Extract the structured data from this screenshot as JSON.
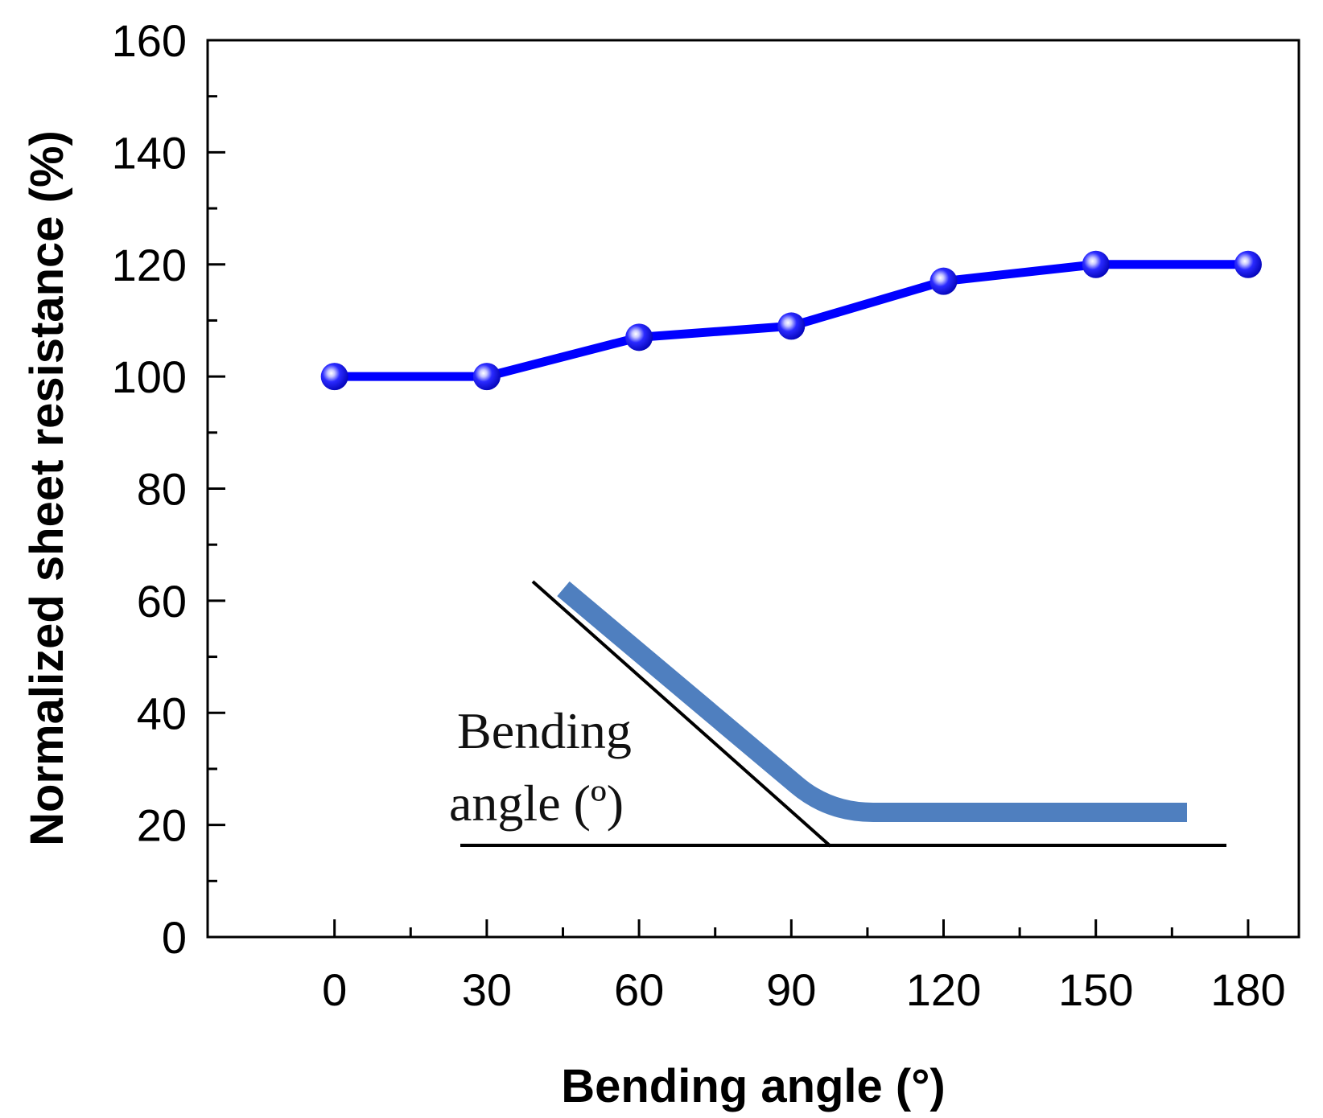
{
  "chart_data": {
    "type": "line",
    "title": "",
    "xlabel": "Bending angle (°)",
    "ylabel": "Normalized sheet resistance (%)",
    "xlim": [
      -25,
      190
    ],
    "ylim": [
      0,
      160
    ],
    "x_ticks": [
      0,
      30,
      60,
      90,
      120,
      150,
      180
    ],
    "y_ticks": [
      0,
      20,
      40,
      60,
      80,
      100,
      120,
      140,
      160
    ],
    "grid": false,
    "series": [
      {
        "name": "sheet resistance",
        "color": "#0000ff",
        "marker_color": "#1a1aff",
        "x": [
          0,
          30,
          60,
          90,
          120,
          150,
          180
        ],
        "values": [
          100,
          100,
          107,
          109,
          117,
          120,
          120
        ]
      }
    ],
    "inset": {
      "label_line1": "Bending",
      "label_line2": "angle (º)",
      "strip_color": "#4f7fbf",
      "line_color": "#000000"
    }
  }
}
